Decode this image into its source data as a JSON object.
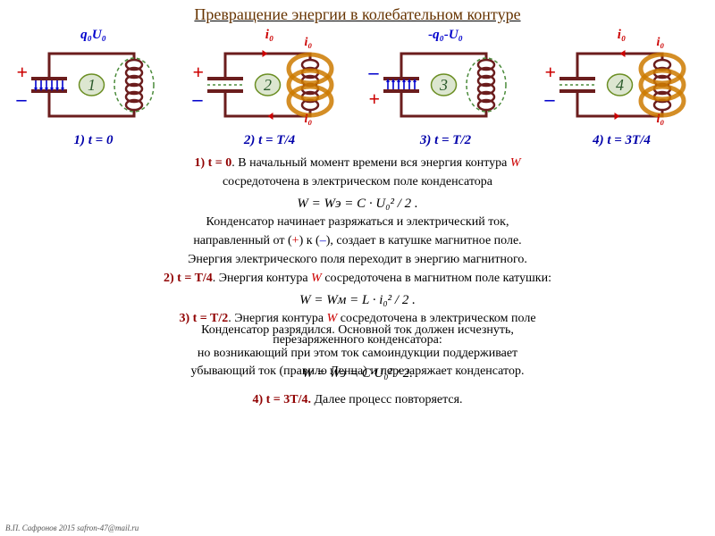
{
  "title": "Превращение энергии в колебательном контуре",
  "diagrams": {
    "stroke_main": "#6b1d1d",
    "stroke_width": 3,
    "cap_fill": "#f5f0f0",
    "cap_stroke": "#6b1d1d",
    "charge_color": "#0000cc",
    "coil_e_color": "#b22222",
    "coil_b_color": "#cc7a00",
    "num_fill": "#dce6d0",
    "num_stroke": "#6b8e23",
    "panels": [
      {
        "num": "1",
        "caption": "1) t = 0",
        "top_label": "q₀U₀",
        "top_color": "#0000cc",
        "plus_top": true,
        "e_field": true,
        "b_field": false,
        "i_label": ""
      },
      {
        "num": "2",
        "caption": "2) t = T/4",
        "top_label": "i₀",
        "top_color": "#cc0000",
        "plus_top": true,
        "e_field": false,
        "b_field": true,
        "i_label": "i₀"
      },
      {
        "num": "3",
        "caption": "3) t = T/2",
        "top_label": "-q₀-U₀",
        "top_color": "#0000cc",
        "plus_top": false,
        "e_field": true,
        "b_field": false,
        "i_label": ""
      },
      {
        "num": "4",
        "caption": "4) t = 3T/4",
        "top_label": "i₀",
        "top_color": "#cc0000",
        "plus_top": true,
        "e_field": false,
        "b_field": true,
        "i_label": "i₀"
      }
    ]
  },
  "text": {
    "p1_lead": "1) t = 0",
    "p1a": ". В начальный момент времени вся энергия контура ",
    "p1w": "W",
    "p1b": "сосредоточена в электрическом поле конденсатора",
    "f1": "W = Wэ = C · U₀² / 2 .",
    "p2": "Конденсатор начинает разряжаться и электрический ток,",
    "p3a": "направленный от (",
    "p3plus": "+",
    "p3b": ") к (",
    "p3minus": "–",
    "p3c": "), создает в катушке магнитное поле.",
    "p4": "Энергия электрического поля переходит в энергию магнитного.",
    "p5_lead": "2) t = T/4",
    "p5a": ". Энергия контура ",
    "p5w": "W",
    "p5b": " сосредоточена в  магнитном поле катушки:",
    "f2": "W = Wм = L · i₀² / 2 .",
    "p6_lead": "3) t = T/2",
    "p6a": ". Энергия контура ",
    "p6w": "W",
    "p6b": " сосредоточена в электрическом поле",
    "p7a": "Конденсатор разрядился. Основной ток должен исчезнуть,",
    "p7b": "перезаряженного конденсатора:",
    "p8": "но возникающий при этом ток самоиндукции поддерживает",
    "p9a": "убывающий ток (правило Ленца) и перезаряжает конденсатор.",
    "f3": "W = Wэ = C·U₀² / 2.",
    "p10_lead": "4) t = 3T/4.",
    "p10a": " Далее процесс повторяется."
  },
  "footer": "В.П. Сафронов 2015 safron-47@mail.ru"
}
